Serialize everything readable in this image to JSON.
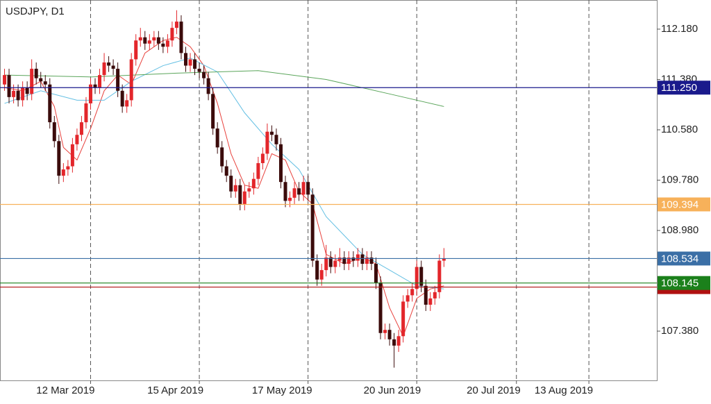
{
  "chart_data": {
    "type": "candlestick",
    "title": "USDJPY, D1",
    "x": [
      "2019-02-13",
      "2019-02-14",
      "2019-02-15",
      "2019-02-18",
      "2019-02-19",
      "2019-02-20",
      "2019-02-21",
      "2019-02-22",
      "2019-02-25",
      "2019-02-26",
      "2019-02-27",
      "2019-02-28",
      "2019-03-01",
      "2019-03-04",
      "2019-03-05",
      "2019-03-06",
      "2019-03-07",
      "2019-03-08",
      "2019-03-11",
      "2019-03-12",
      "2019-03-13",
      "2019-03-14",
      "2019-03-15",
      "2019-03-18",
      "2019-03-19",
      "2019-03-20",
      "2019-03-21",
      "2019-03-22",
      "2019-03-25",
      "2019-03-26",
      "2019-03-27",
      "2019-03-28",
      "2019-03-29",
      "2019-04-01",
      "2019-04-02",
      "2019-04-03",
      "2019-04-04",
      "2019-04-05",
      "2019-04-08",
      "2019-04-09",
      "2019-04-10",
      "2019-04-11",
      "2019-04-12",
      "2019-04-15",
      "2019-04-16",
      "2019-04-17",
      "2019-04-18",
      "2019-04-19",
      "2019-04-22",
      "2019-04-23",
      "2019-04-24",
      "2019-04-25",
      "2019-04-26",
      "2019-04-29",
      "2019-04-30",
      "2019-05-01",
      "2019-05-02",
      "2019-05-03",
      "2019-05-06",
      "2019-05-07",
      "2019-05-08",
      "2019-05-09",
      "2019-05-10",
      "2019-05-13",
      "2019-05-14",
      "2019-05-15",
      "2019-05-16",
      "2019-05-17",
      "2019-05-20",
      "2019-05-21",
      "2019-05-22",
      "2019-05-23",
      "2019-05-24",
      "2019-05-27",
      "2019-05-28",
      "2019-05-29",
      "2019-05-30",
      "2019-05-31",
      "2019-06-03",
      "2019-06-04",
      "2019-06-05",
      "2019-06-06",
      "2019-06-07",
      "2019-06-10",
      "2019-06-11",
      "2019-06-12",
      "2019-06-13",
      "2019-06-14",
      "2019-06-17",
      "2019-06-18",
      "2019-06-19",
      "2019-06-20",
      "2019-06-21",
      "2019-06-24",
      "2019-06-25",
      "2019-06-26",
      "2019-06-27",
      "2019-06-28"
    ],
    "open": [
      111.3,
      111.45,
      111.1,
      111.2,
      111.05,
      111.25,
      111.15,
      111.55,
      111.4,
      111.35,
      111.3,
      110.7,
      110.4,
      109.85,
      109.95,
      110.0,
      110.35,
      110.5,
      110.7,
      111.0,
      111.3,
      111.25,
      111.45,
      111.65,
      111.6,
      111.55,
      111.2,
      110.95,
      111.05,
      111.7,
      112.0,
      112.05,
      111.95,
      112.0,
      112.05,
      111.95,
      111.9,
      112.0,
      112.2,
      112.3,
      111.8,
      111.6,
      111.7,
      111.55,
      111.5,
      111.4,
      111.15,
      110.6,
      110.3,
      110.0,
      109.85,
      109.6,
      109.7,
      109.4,
      109.6,
      109.65,
      109.8,
      110.05,
      110.2,
      110.55,
      110.5,
      110.35,
      109.75,
      109.45,
      109.5,
      109.65,
      109.55,
      109.75,
      109.55,
      108.5,
      108.2,
      108.35,
      108.55,
      108.4,
      108.5,
      108.55,
      108.45,
      108.55,
      108.5,
      108.6,
      108.45,
      108.55,
      108.45,
      108.15,
      107.35,
      107.4,
      107.25,
      107.15,
      107.3,
      107.85,
      107.95,
      108.05,
      108.4,
      108.1,
      107.8,
      107.9,
      108.0,
      108.5
    ],
    "high": [
      111.55,
      111.55,
      111.3,
      111.3,
      111.35,
      111.35,
      111.7,
      111.65,
      111.5,
      111.45,
      111.4,
      110.8,
      110.5,
      110.05,
      110.1,
      110.45,
      110.6,
      110.8,
      111.1,
      111.4,
      111.4,
      111.55,
      111.8,
      111.75,
      111.7,
      111.65,
      111.3,
      111.15,
      111.8,
      112.1,
      112.2,
      112.15,
      112.1,
      112.15,
      112.15,
      112.05,
      112.1,
      112.3,
      112.48,
      112.4,
      111.9,
      111.8,
      111.8,
      111.65,
      111.6,
      111.5,
      111.25,
      110.7,
      110.4,
      110.1,
      109.95,
      109.8,
      109.8,
      109.7,
      109.75,
      109.9,
      110.15,
      110.3,
      110.68,
      110.65,
      110.6,
      110.45,
      109.85,
      109.6,
      109.75,
      109.75,
      109.85,
      109.85,
      109.65,
      108.6,
      108.45,
      108.75,
      108.65,
      108.6,
      108.7,
      108.65,
      108.65,
      108.65,
      108.7,
      108.7,
      108.65,
      108.65,
      108.55,
      108.25,
      107.5,
      107.5,
      107.35,
      107.4,
      107.95,
      108.05,
      108.15,
      108.5,
      108.5,
      108.2,
      108.0,
      108.1,
      108.6,
      108.7
    ],
    "low": [
      111.2,
      111.0,
      111.0,
      110.95,
      110.95,
      111.05,
      111.05,
      111.3,
      111.25,
      111.2,
      110.6,
      110.3,
      109.72,
      109.75,
      109.85,
      109.9,
      110.25,
      110.4,
      110.6,
      110.9,
      111.15,
      111.15,
      111.35,
      111.5,
      111.45,
      111.1,
      110.85,
      110.85,
      110.95,
      111.6,
      111.9,
      111.85,
      111.85,
      111.9,
      111.85,
      111.8,
      111.8,
      111.9,
      112.1,
      111.7,
      111.5,
      111.5,
      111.45,
      111.4,
      111.3,
      111.05,
      110.5,
      110.2,
      109.9,
      109.75,
      109.5,
      109.5,
      109.3,
      109.3,
      109.5,
      109.55,
      109.7,
      109.95,
      110.1,
      110.4,
      110.25,
      109.65,
      109.35,
      109.35,
      109.4,
      109.45,
      109.45,
      109.45,
      108.4,
      108.1,
      108.1,
      108.25,
      108.3,
      108.3,
      108.4,
      108.35,
      108.35,
      108.4,
      108.4,
      108.35,
      108.35,
      108.35,
      108.05,
      107.25,
      107.25,
      107.15,
      106.8,
      107.05,
      107.2,
      107.75,
      107.85,
      107.95,
      108.0,
      107.7,
      107.7,
      107.8,
      107.9,
      108.4
    ],
    "close": [
      111.45,
      111.1,
      111.2,
      111.05,
      111.25,
      111.15,
      111.55,
      111.4,
      111.35,
      111.3,
      110.7,
      110.4,
      109.85,
      109.95,
      110.0,
      110.35,
      110.5,
      110.7,
      111.0,
      111.3,
      111.25,
      111.45,
      111.65,
      111.6,
      111.55,
      111.2,
      110.95,
      111.05,
      111.7,
      112.0,
      112.05,
      111.95,
      112.0,
      112.05,
      111.95,
      111.9,
      112.0,
      112.2,
      112.3,
      111.8,
      111.6,
      111.7,
      111.55,
      111.5,
      111.4,
      111.15,
      110.6,
      110.3,
      110.0,
      109.85,
      109.6,
      109.7,
      109.4,
      109.6,
      109.65,
      109.8,
      110.05,
      110.2,
      110.55,
      110.5,
      110.35,
      109.75,
      109.45,
      109.5,
      109.65,
      109.55,
      109.75,
      109.55,
      108.5,
      108.2,
      108.35,
      108.55,
      108.4,
      108.5,
      108.55,
      108.45,
      108.55,
      108.5,
      108.6,
      108.45,
      108.55,
      108.45,
      108.15,
      107.35,
      107.4,
      107.25,
      107.15,
      107.3,
      107.85,
      107.95,
      108.05,
      108.4,
      108.1,
      107.8,
      107.9,
      108.0,
      108.5,
      108.534
    ],
    "up_color": "#e3262b",
    "down_color": "#3b0b0b",
    "xlim": [
      "2019-02-12",
      "2019-09-03"
    ],
    "xticks": [
      {
        "value": "2019-03-12",
        "label": "12 Mar 2019"
      },
      {
        "value": "2019-04-15",
        "label": "15 Apr 2019"
      },
      {
        "value": "2019-05-17",
        "label": "17 May 2019"
      },
      {
        "value": "2019-06-20",
        "label": "20 Jun 2019"
      },
      {
        "value": "2019-07-20",
        "label": "20 Jul 2019"
      },
      {
        "value": "2019-08-13",
        "label": "13 Aug 2019"
      }
    ],
    "ylim": [
      106.597,
      112.643
    ],
    "yticks": [
      {
        "value": 112.18,
        "label": "112.180"
      },
      {
        "value": 111.38,
        "label": "111.380"
      },
      {
        "value": 110.58,
        "label": "110.580"
      },
      {
        "value": 109.78,
        "label": "109.780"
      },
      {
        "value": 108.98,
        "label": "108.980"
      },
      {
        "value": 107.38,
        "label": "107.380"
      }
    ],
    "lines": [
      {
        "color": "#e8413c",
        "x": [
          "2019-02-13",
          "2019-02-19",
          "2019-02-25",
          "2019-02-28",
          "2019-03-04",
          "2019-03-07",
          "2019-03-12",
          "2019-03-15",
          "2019-03-20",
          "2019-03-25",
          "2019-03-28",
          "2019-04-03",
          "2019-04-08",
          "2019-04-11",
          "2019-04-16",
          "2019-04-19",
          "2019-04-24",
          "2019-04-29",
          "2019-05-02",
          "2019-05-07",
          "2019-05-10",
          "2019-05-15",
          "2019-05-20",
          "2019-05-23",
          "2019-05-29",
          "2019-06-04",
          "2019-06-07",
          "2019-06-12",
          "2019-06-17",
          "2019-06-20",
          "2019-06-25",
          "2019-06-28"
        ],
        "values": [
          111.25,
          111.2,
          111.35,
          110.95,
          110.3,
          110.1,
          110.6,
          111.2,
          111.45,
          111.3,
          111.8,
          112.0,
          112.05,
          111.9,
          111.6,
          111.0,
          110.2,
          109.7,
          109.65,
          110.2,
          110.1,
          109.6,
          109.4,
          108.6,
          108.45,
          108.55,
          108.45,
          107.75,
          107.3,
          107.9,
          108.05,
          108.1
        ]
      },
      {
        "color": "#63bfe3",
        "x": [
          "2019-02-13",
          "2019-02-25",
          "2019-03-07",
          "2019-03-15",
          "2019-03-25",
          "2019-04-03",
          "2019-04-11",
          "2019-04-19",
          "2019-04-29",
          "2019-05-07",
          "2019-05-15",
          "2019-05-23",
          "2019-06-04",
          "2019-06-12",
          "2019-06-20",
          "2019-06-28"
        ],
        "values": [
          111.0,
          111.2,
          111.05,
          111.05,
          111.35,
          111.6,
          111.72,
          111.5,
          110.85,
          110.35,
          109.95,
          109.2,
          108.6,
          108.35,
          108.1,
          108.05
        ]
      },
      {
        "color": "#5aa55a",
        "x": [
          "2019-02-13",
          "2019-03-12",
          "2019-04-08",
          "2019-05-02",
          "2019-05-23",
          "2019-06-12",
          "2019-06-28"
        ],
        "values": [
          111.45,
          111.42,
          111.48,
          111.52,
          111.38,
          111.15,
          110.95
        ]
      }
    ],
    "levels": [
      {
        "value": 111.25,
        "label": "111.250",
        "color": "#1a1a8c"
      },
      {
        "value": 109.394,
        "label": "109.394",
        "color": "#f7b15a"
      },
      {
        "value": 108.534,
        "label": "108.534",
        "color": "#3b6fa6"
      },
      {
        "value": 108.08,
        "color": "#b01010"
      },
      {
        "value": 108.145,
        "label": "108.145",
        "color": "#1b801b"
      }
    ]
  }
}
